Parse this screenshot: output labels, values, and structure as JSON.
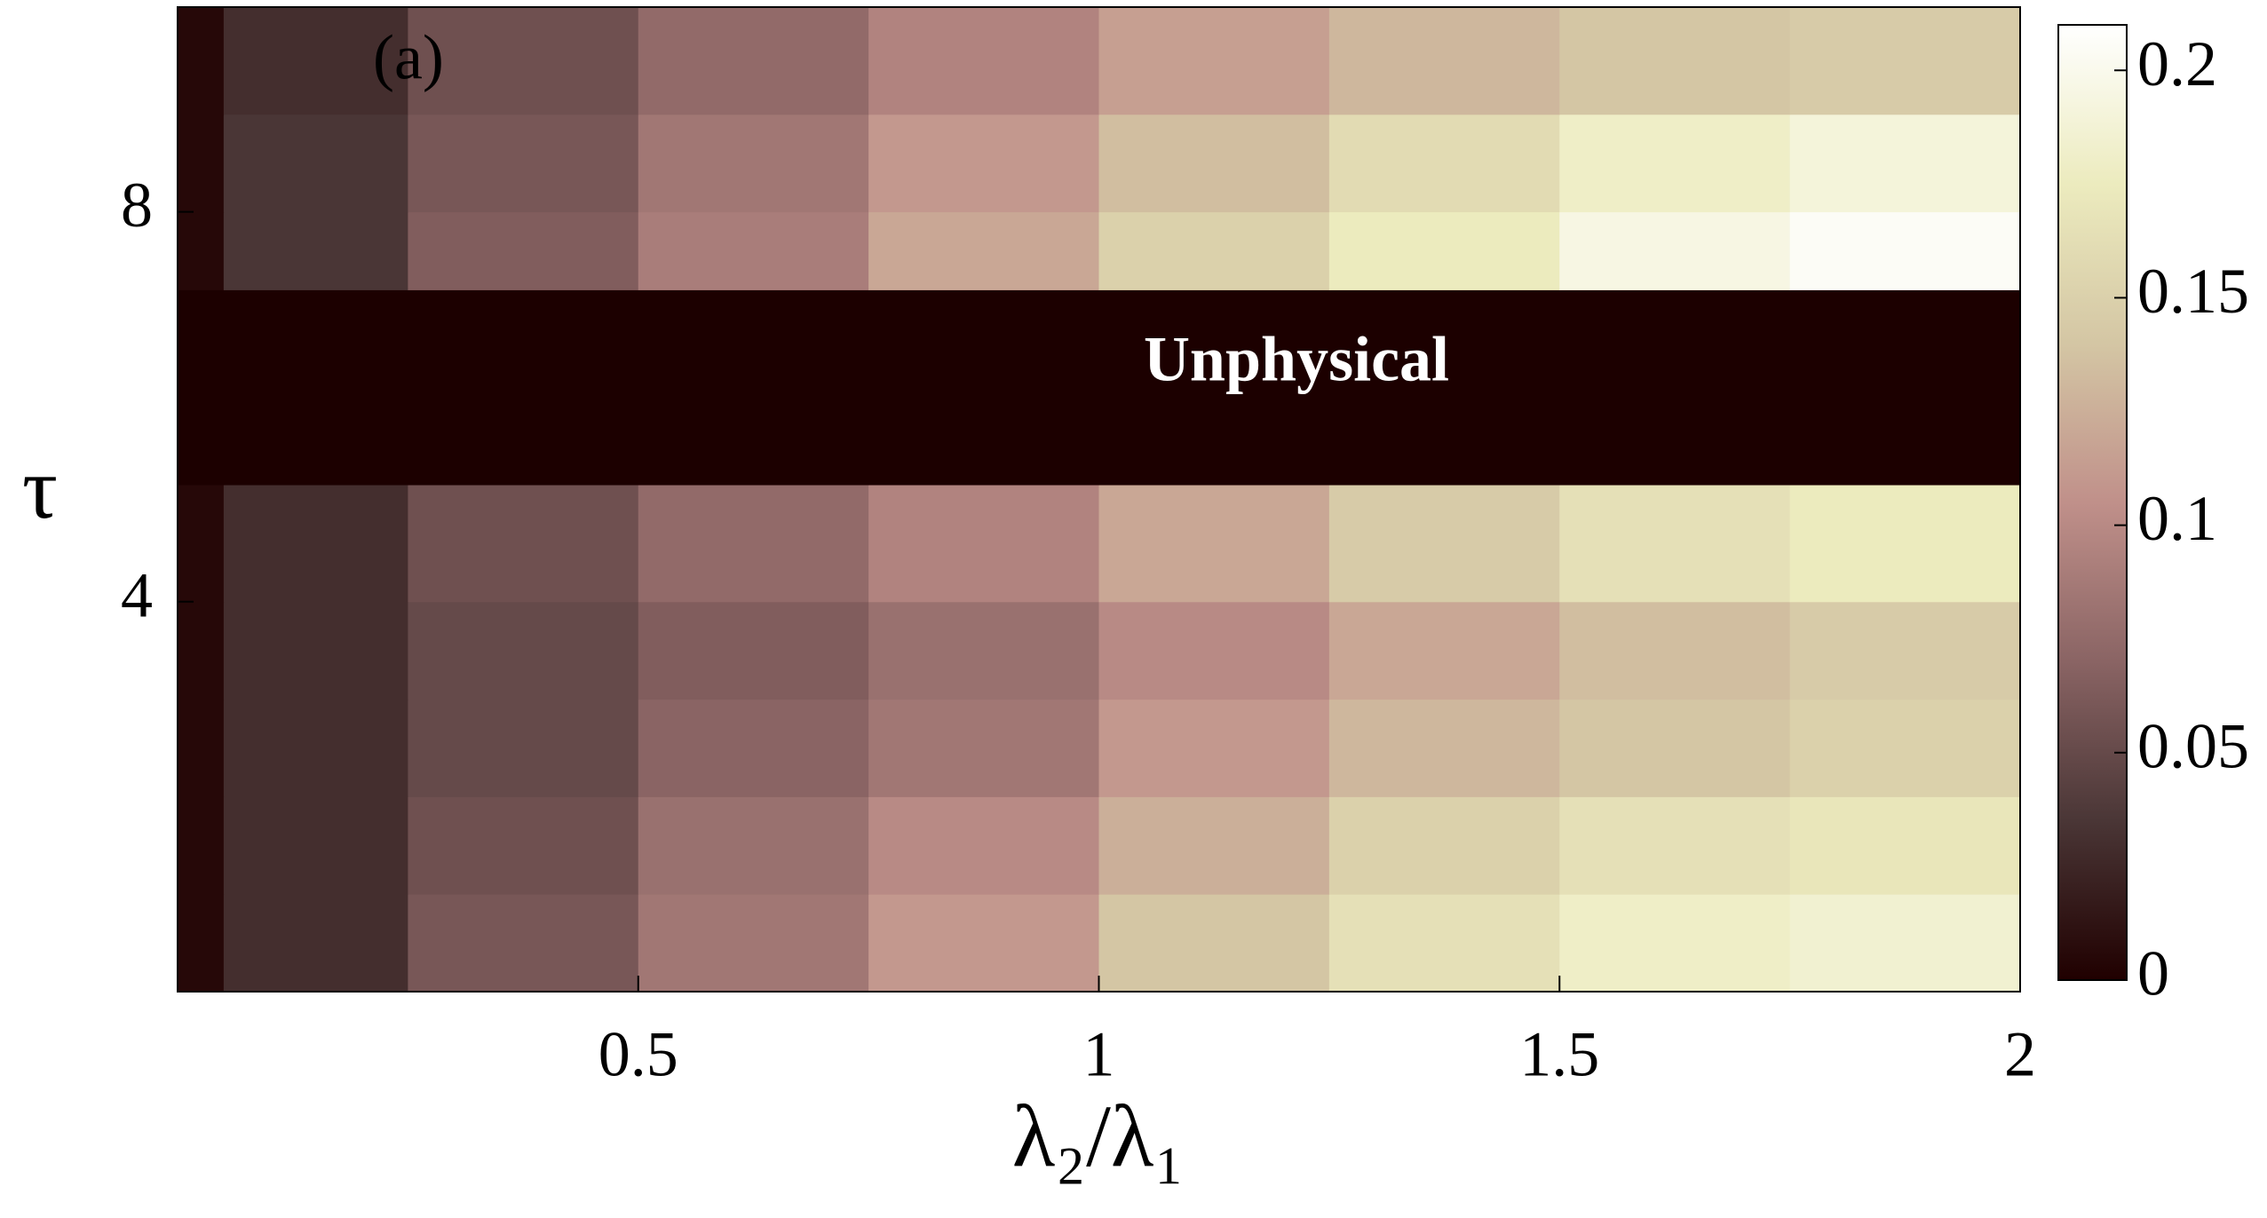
{
  "chart_data": {
    "type": "heatmap",
    "xlabel": "λ₂/λ₁",
    "ylabel": "τ",
    "annotations": [
      "(a)",
      "Unphysical"
    ],
    "xlim": [
      0,
      2
    ],
    "xticks": [
      0.5,
      1,
      1.5,
      2
    ],
    "ylim": [
      0,
      10.1
    ],
    "yticks": [
      4,
      8
    ],
    "clim": [
      0,
      0.21
    ],
    "cticks": [
      0,
      0.05,
      0.1,
      0.15,
      0.2
    ],
    "colormap": [
      "#200000",
      "#4a3636",
      "#8a6464",
      "#c0908a",
      "#d4c6a4",
      "#ecebbe",
      "#ffffff"
    ],
    "x_edges": [
      0,
      0.05,
      0.25,
      0.5,
      0.75,
      1,
      1.25,
      1.5,
      1.75,
      2
    ],
    "y_edges": [
      0,
      1,
      2,
      3,
      4,
      5.2,
      7.2,
      8,
      9,
      10.1
    ],
    "z": [
      [
        0.005,
        0.03,
        0.06,
        0.085,
        0.11,
        0.14,
        0.165,
        0.18,
        0.185
      ],
      [
        0.005,
        0.03,
        0.055,
        0.08,
        0.1,
        0.125,
        0.15,
        0.165,
        0.17
      ],
      [
        0.005,
        0.03,
        0.05,
        0.07,
        0.085,
        0.11,
        0.13,
        0.14,
        0.15
      ],
      [
        0.005,
        0.03,
        0.05,
        0.065,
        0.08,
        0.1,
        0.12,
        0.135,
        0.145
      ],
      [
        0.005,
        0.03,
        0.055,
        0.075,
        0.095,
        0.12,
        0.145,
        0.165,
        0.175
      ],
      [
        null,
        null,
        null,
        null,
        null,
        null,
        null,
        null,
        null
      ],
      [
        0.005,
        0.035,
        0.065,
        0.09,
        0.12,
        0.15,
        0.175,
        0.195,
        0.205
      ],
      [
        0.005,
        0.035,
        0.06,
        0.085,
        0.11,
        0.135,
        0.16,
        0.18,
        0.19
      ],
      [
        0.005,
        0.03,
        0.055,
        0.075,
        0.095,
        0.115,
        0.13,
        0.14,
        0.145
      ]
    ]
  }
}
